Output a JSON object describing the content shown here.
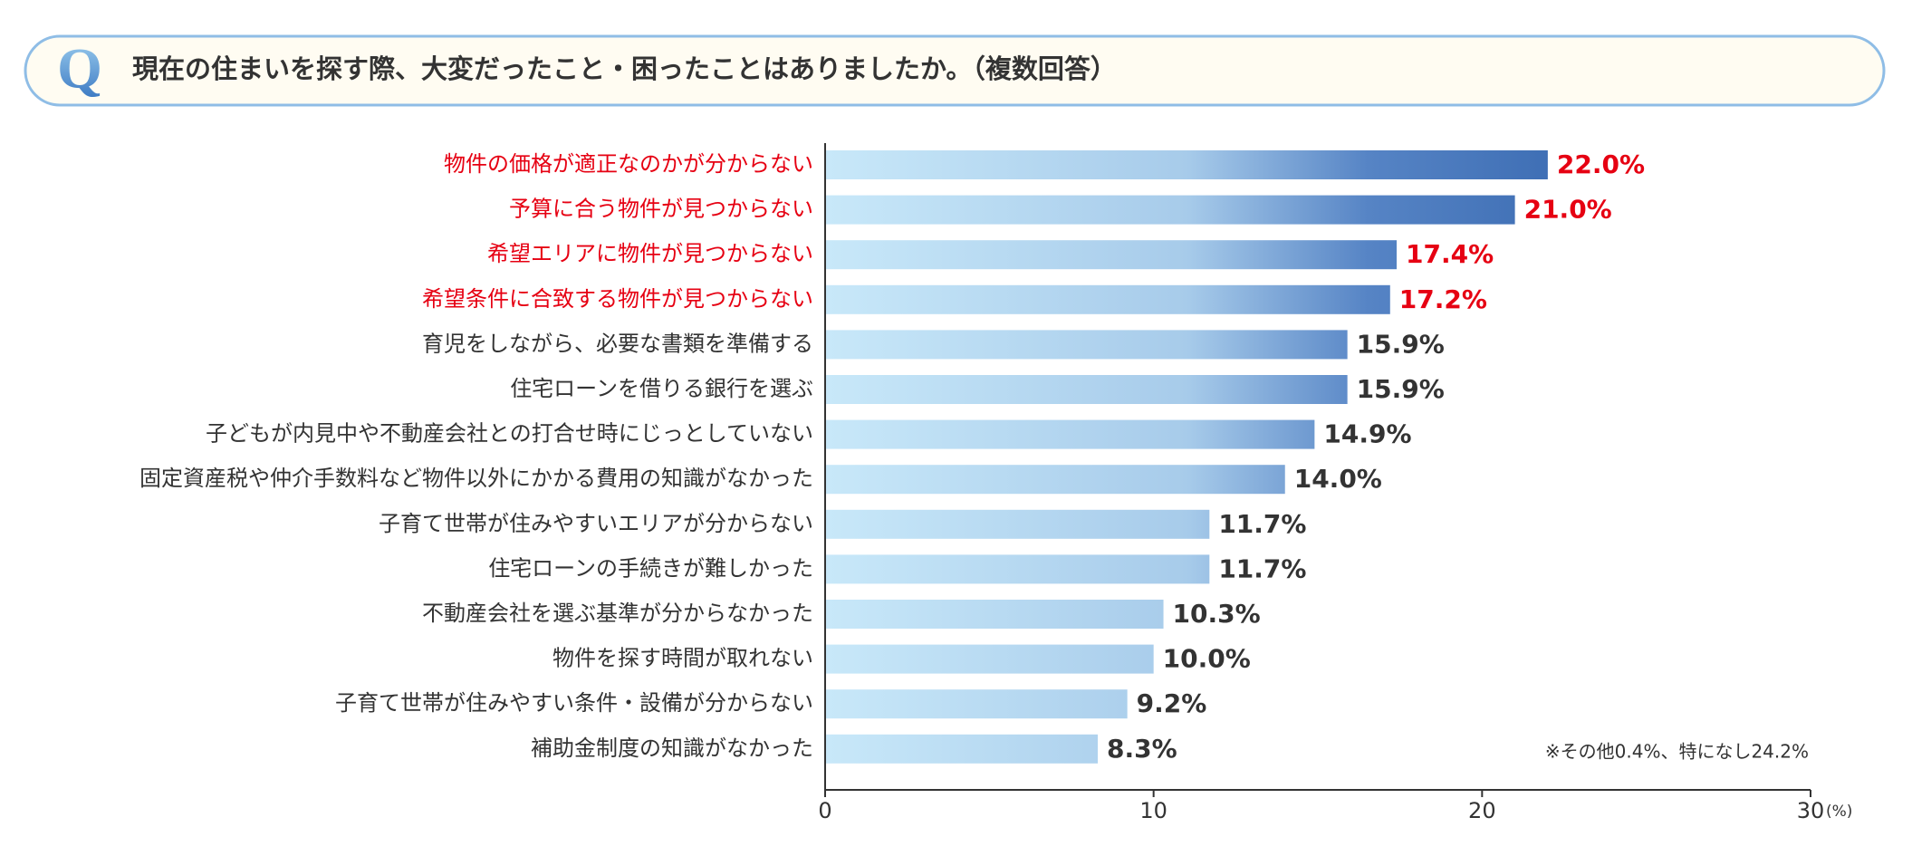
{
  "chart_data": {
    "type": "bar",
    "orientation": "horizontal",
    "title_icon": "Q",
    "title": "現在の住まいを探す際、大変だったこと・困ったことはありましたか。（複数回答）",
    "categories": [
      "物件の価格が適正なのかが分からない",
      "予算に合う物件が見つからない",
      "希望エリアに物件が見つからない",
      "希望条件に合致する物件が見つからない",
      "育児をしながら、必要な書類を準備する",
      "住宅ローンを借りる銀行を選ぶ",
      "子どもが内見中や不動産会社との打合せ時にじっとしていない",
      "固定資産税や仲介手数料など物件以外にかかる費用の知識がなかった",
      "子育て世帯が住みやすいエリアが分からない",
      "住宅ローンの手続きが難しかった",
      "不動産会社を選ぶ基準が分からなかった",
      "物件を探す時間が取れない",
      "子育て世帯が住みやすい条件・設備が分からない",
      "補助金制度の知識がなかった"
    ],
    "values": [
      22.0,
      21.0,
      17.4,
      17.2,
      15.9,
      15.9,
      14.9,
      14.0,
      11.7,
      11.7,
      10.3,
      10.0,
      9.2,
      8.3
    ],
    "value_labels": [
      "22.0%",
      "21.0%",
      "17.4%",
      "17.2%",
      "15.9%",
      "15.9%",
      "14.9%",
      "14.0%",
      "11.7%",
      "11.7%",
      "10.3%",
      "10.0%",
      "9.2%",
      "8.3%"
    ],
    "label_colors": [
      "#e60012",
      "#e60012",
      "#e60012",
      "#e60012",
      "#333333",
      "#333333",
      "#333333",
      "#333333",
      "#333333",
      "#333333",
      "#333333",
      "#333333",
      "#333333",
      "#333333"
    ],
    "xlim": [
      0,
      30
    ],
    "xticks": [
      0,
      10,
      20,
      30
    ],
    "x_unit": "(%)",
    "note": "※その他0.4%、特になし24.2%"
  }
}
